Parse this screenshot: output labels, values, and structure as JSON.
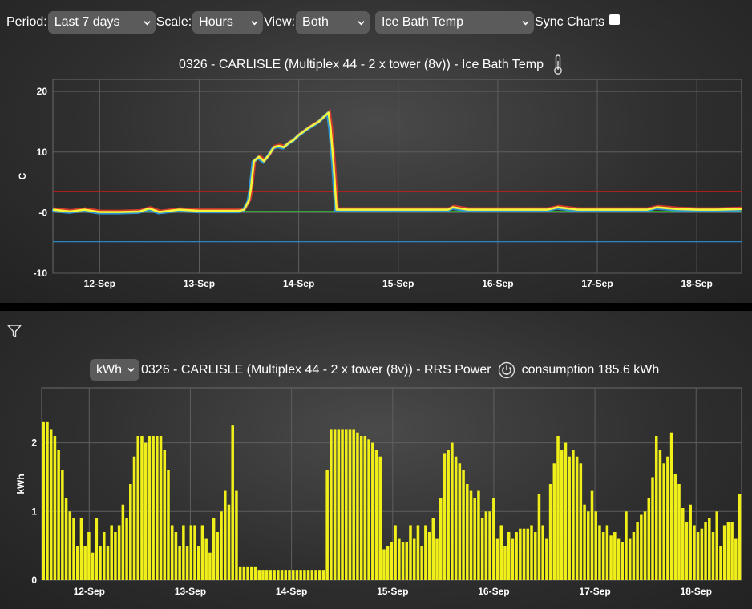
{
  "toolbar": {
    "period_label": "Period:",
    "period_value": "Last 7 days",
    "scale_label": "Scale:",
    "scale_value": "Hours",
    "view_label": "View:",
    "view_value": "Both",
    "metric_value": "Ice Bath Temp",
    "sync_label": "Sync Charts",
    "sync_checked": false
  },
  "chart_data": [
    {
      "type": "line",
      "title": "0326 - CARLISLE (Multiplex 44 - 2 x tower (8v)) - Ice Bath Temp",
      "icon": "thermometer-icon",
      "ylabel": "C",
      "ylim": [
        -10,
        22
      ],
      "yticks": [
        "20",
        "10",
        "-0",
        "-10"
      ],
      "ytick_values": [
        20,
        10,
        0,
        -10
      ],
      "xticks": [
        "12-Sep",
        "13-Sep",
        "14-Sep",
        "15-Sep",
        "16-Sep",
        "17-Sep",
        "18-Sep"
      ],
      "xrange_days": [
        11.53,
        18.45
      ],
      "grid": true,
      "reference_lines": [
        {
          "value": 3.5,
          "color": "#d11a1a"
        },
        {
          "value": 0.2,
          "color": "#2ecc2e"
        },
        {
          "value": -4.8,
          "color": "#2a8fd6"
        }
      ],
      "series": [
        {
          "color": "#f4f43a",
          "x": [
            11.53,
            11.7,
            11.85,
            12.0,
            12.2,
            12.4,
            12.5,
            12.6,
            12.8,
            13.0,
            13.2,
            13.4,
            13.45,
            13.5,
            13.52,
            13.55,
            13.6,
            13.65,
            13.7,
            13.75,
            13.8,
            13.85,
            13.9,
            13.95,
            14.0,
            14.1,
            14.2,
            14.3,
            14.32,
            14.35,
            14.38,
            14.5,
            14.7,
            15.0,
            15.3,
            15.5,
            15.55,
            15.7,
            16.0,
            16.3,
            16.5,
            16.6,
            16.8,
            17.0,
            17.3,
            17.5,
            17.6,
            17.8,
            18.0,
            18.2,
            18.45
          ],
          "y": [
            0.5,
            0.2,
            0.5,
            0.1,
            0.1,
            0.2,
            0.7,
            0.1,
            0.5,
            0.3,
            0.3,
            0.3,
            0.5,
            2,
            4,
            8.5,
            9.2,
            8.5,
            9.5,
            10.8,
            11,
            10.8,
            11.5,
            12,
            12.8,
            14,
            15,
            16.5,
            14,
            8,
            0.5,
            0.5,
            0.5,
            0.5,
            0.5,
            0.5,
            0.9,
            0.5,
            0.5,
            0.5,
            0.5,
            0.9,
            0.5,
            0.5,
            0.5,
            0.5,
            0.9,
            0.6,
            0.5,
            0.5,
            0.6
          ]
        }
      ]
    },
    {
      "type": "bar",
      "title": "0326 - CARLISLE (Multiplex 44 - 2 x tower (8v)) - RRS Power",
      "unit_select": "kWh",
      "icon": "power-icon",
      "consumption_text": "consumption 185.6 kWh",
      "ylabel": "kWh",
      "ylim": [
        0,
        2.8
      ],
      "yticks": [
        "2",
        "1",
        "0"
      ],
      "ytick_values": [
        2,
        1,
        0
      ],
      "xticks": [
        "12-Sep",
        "13-Sep",
        "14-Sep",
        "15-Sep",
        "16-Sep",
        "17-Sep",
        "18-Sep"
      ],
      "xrange_days": [
        11.53,
        18.45
      ],
      "grid": true,
      "bar_color": "#f0ef19",
      "values": [
        2.3,
        2.3,
        2.2,
        2.1,
        1.9,
        1.6,
        1.2,
        1.0,
        0.9,
        0.5,
        0.9,
        0.5,
        0.7,
        0.4,
        0.9,
        0.5,
        0.7,
        0.5,
        0.8,
        0.7,
        0.8,
        1.1,
        0.9,
        1.4,
        1.8,
        2.1,
        2.1,
        2.0,
        2.1,
        2.1,
        2.1,
        2.1,
        1.9,
        1.6,
        0.8,
        0.7,
        0.5,
        0.8,
        0.5,
        0.8,
        0.8,
        0.5,
        0.8,
        0.6,
        0.4,
        0.9,
        0.7,
        1.0,
        1.3,
        1.1,
        2.25,
        1.3,
        0.2,
        0.2,
        0.2,
        0.2,
        0.2,
        0.15,
        0.15,
        0.15,
        0.15,
        0.15,
        0.15,
        0.15,
        0.15,
        0.15,
        0.15,
        0.15,
        0.15,
        0.15,
        0.15,
        0.15,
        0.15,
        0.15,
        0.15,
        1.6,
        2.2,
        2.2,
        2.2,
        2.2,
        2.2,
        2.2,
        2.2,
        2.15,
        2.1,
        2.1,
        2.05,
        2.0,
        1.9,
        1.8,
        0.45,
        0.5,
        0.55,
        0.8,
        0.6,
        0.55,
        0.55,
        0.8,
        0.6,
        0.8,
        0.5,
        0.8,
        0.7,
        0.9,
        0.6,
        1.2,
        1.85,
        1.9,
        2.0,
        1.8,
        1.7,
        1.6,
        1.4,
        1.3,
        1.2,
        1.3,
        0.9,
        1.0,
        1.0,
        1.2,
        0.6,
        0.8,
        0.5,
        0.7,
        0.6,
        0.7,
        0.75,
        0.75,
        0.75,
        0.8,
        0.7,
        1.25,
        0.8,
        0.6,
        1.4,
        1.7,
        2.1,
        1.9,
        2.0,
        1.8,
        1.9,
        1.8,
        1.7,
        1.1,
        1.0,
        1.3,
        1.0,
        0.8,
        0.7,
        0.8,
        0.65,
        0.7,
        0.6,
        0.55,
        1.0,
        0.6,
        0.7,
        0.85,
        0.95,
        1.0,
        1.2,
        1.5,
        2.1,
        1.9,
        1.7,
        1.8,
        2.15,
        1.55,
        1.4,
        1.05,
        0.85,
        1.1,
        0.8,
        0.7,
        0.75,
        0.85,
        0.9,
        0.7,
        1.0,
        0.5,
        0.8,
        0.85,
        0.85,
        0.6,
        1.25
      ]
    }
  ],
  "panel2": {
    "filter_icon": "filter-icon"
  }
}
